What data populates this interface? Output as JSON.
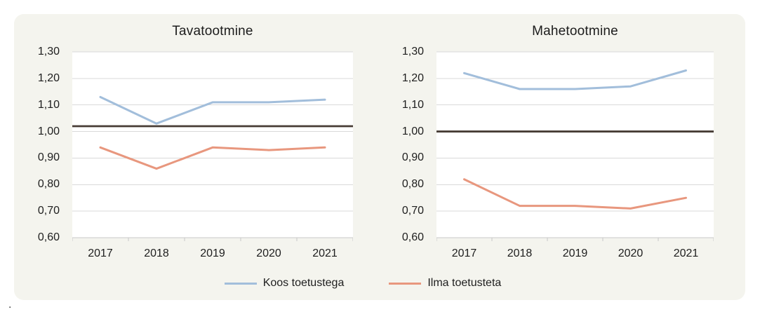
{
  "page": {
    "footer_dot": "."
  },
  "card": {
    "background": "#F4F4EE"
  },
  "colors": {
    "plot_background": "#FFFFFF",
    "gridline": "#D9D9D9",
    "axis_line": "#C9C9C9",
    "tick": "#C9C9C9",
    "text": "#1E1E1E",
    "series_blue": "#A2BEDB",
    "series_orange": "#E8977E",
    "baseline_dark": "#473C35"
  },
  "axes": {
    "y_tick_labels": [
      "1,30",
      "1,20",
      "1,10",
      "1,00",
      "0,90",
      "0,80",
      "0,70",
      "0,60"
    ],
    "x_tick_labels": [
      "2017",
      "2018",
      "2019",
      "2020",
      "2021"
    ],
    "ylim": [
      0.6,
      1.3
    ],
    "ytick_step": 0.1,
    "decimal_separator": ",",
    "grid": true
  },
  "legend": {
    "position": "bottom-center",
    "items": [
      {
        "label": "Koos toetustega",
        "color": "#A2BEDB"
      },
      {
        "label": "Ilma toetusteta",
        "color": "#E8977E"
      }
    ]
  },
  "chart_data": [
    {
      "type": "line",
      "title": "Tavatootmine",
      "categories": [
        "2017",
        "2018",
        "2019",
        "2020",
        "2021"
      ],
      "ylim": [
        0.6,
        1.3
      ],
      "grid": true,
      "series": [
        {
          "name": "Koos toetustega",
          "color": "#A2BEDB",
          "values": [
            1.13,
            1.03,
            1.11,
            1.11,
            1.12
          ]
        },
        {
          "name": "Ilma toetusteta",
          "color": "#E8977E",
          "values": [
            0.94,
            0.86,
            0.94,
            0.93,
            0.94
          ]
        }
      ],
      "baseline": {
        "value": 1.02,
        "color": "#473C35"
      }
    },
    {
      "type": "line",
      "title": "Mahetootmine",
      "categories": [
        "2017",
        "2018",
        "2019",
        "2020",
        "2021"
      ],
      "ylim": [
        0.6,
        1.3
      ],
      "grid": true,
      "series": [
        {
          "name": "Koos toetustega",
          "color": "#A2BEDB",
          "values": [
            1.22,
            1.16,
            1.16,
            1.17,
            1.23
          ]
        },
        {
          "name": "Ilma toetusteta",
          "color": "#E8977E",
          "values": [
            0.82,
            0.72,
            0.72,
            0.71,
            0.75
          ]
        }
      ],
      "baseline": {
        "value": 1.0,
        "color": "#473C35"
      }
    }
  ]
}
